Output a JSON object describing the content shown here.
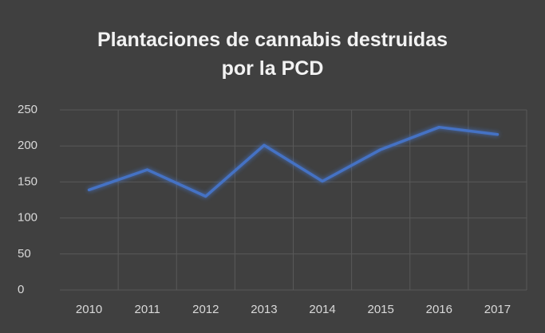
{
  "chart_data": {
    "type": "line",
    "title": "Plantaciones de cannabis destruidas por la PCD",
    "categories": [
      "2010",
      "2011",
      "2012",
      "2013",
      "2014",
      "2015",
      "2016",
      "2017"
    ],
    "values": [
      139,
      167,
      130,
      201,
      151,
      195,
      226,
      216
    ],
    "color": "#4472c4",
    "ylim": [
      0,
      250
    ],
    "yticks": [
      0,
      50,
      100,
      150,
      200,
      250
    ],
    "grid": true
  }
}
